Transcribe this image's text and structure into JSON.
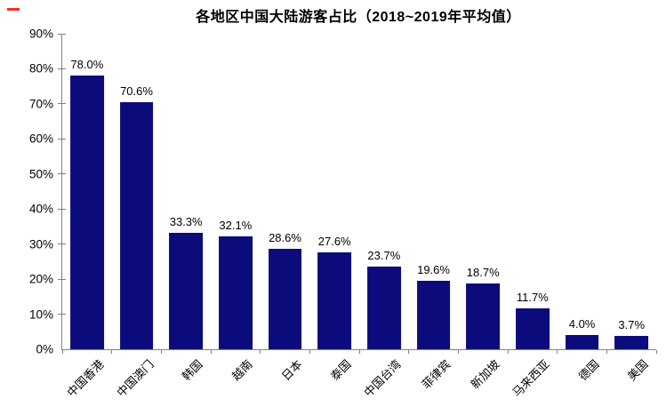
{
  "chart_data": {
    "type": "bar",
    "title": "各地区中国大陆游客占比（2018~2019年平均值）",
    "categories": [
      "中国香港",
      "中国澳门",
      "韩国",
      "越南",
      "日本",
      "泰国",
      "中国台湾",
      "菲律宾",
      "新加坡",
      "马来西亚",
      "德国",
      "美国"
    ],
    "values": [
      78.0,
      70.6,
      33.3,
      32.1,
      28.6,
      27.6,
      23.7,
      19.6,
      18.7,
      11.7,
      4.0,
      3.7
    ],
    "value_labels": [
      "78.0%",
      "70.6%",
      "33.3%",
      "32.1%",
      "28.6%",
      "27.6%",
      "23.7%",
      "19.6%",
      "18.7%",
      "11.7%",
      "4.0%",
      "3.7%"
    ],
    "xlabel": "",
    "ylabel": "",
    "ylim": [
      0,
      90
    ],
    "y_tick_labels": [
      "0%",
      "10%",
      "20%",
      "30%",
      "40%",
      "50%",
      "60%",
      "70%",
      "80%",
      "90%"
    ],
    "grid": false,
    "legend_position": "none",
    "bar_color": "#0b0b7c",
    "axis_color": "#808080",
    "text_color": "#000000",
    "accent_mark_color": "#ff2b2b"
  }
}
